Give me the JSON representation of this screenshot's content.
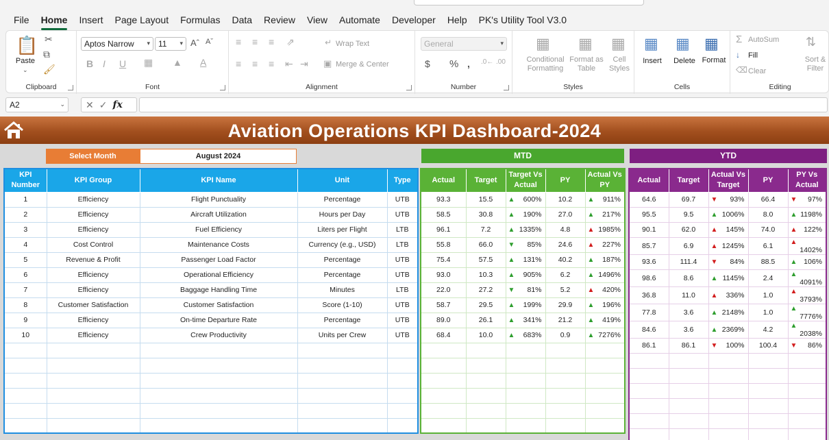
{
  "menu": [
    "File",
    "Home",
    "Insert",
    "Page Layout",
    "Formulas",
    "Data",
    "Review",
    "View",
    "Automate",
    "Developer",
    "Help",
    "PK's Utility Tool V3.0"
  ],
  "ribbon": {
    "clipboard": {
      "label": "Clipboard",
      "paste": "Paste"
    },
    "font": {
      "label": "Font",
      "font_name": "Aptos Narrow",
      "font_size": "11"
    },
    "alignment": {
      "label": "Alignment",
      "wrap": "Wrap Text",
      "merge": "Merge & Center"
    },
    "number": {
      "label": "Number",
      "format": "General"
    },
    "styles": {
      "label": "Styles",
      "cond1": "Conditional",
      "cond2": "Formatting",
      "fat1": "Format as",
      "fat2": "Table",
      "cs1": "Cell",
      "cs2": "Styles"
    },
    "cells": {
      "label": "Cells",
      "insert": "Insert",
      "delete": "Delete",
      "format": "Format"
    },
    "editing": {
      "label": "Editing",
      "autosum": "AutoSum",
      "fill": "Fill",
      "clear": "Clear",
      "sort1": "Sort &",
      "sort2": "Filter"
    }
  },
  "formula_bar": {
    "name_box": "A2",
    "fx": "fx"
  },
  "dashboard": {
    "title": "Aviation Operations KPI Dashboard-2024",
    "select_month_label": "Select Month",
    "month": "August 2024",
    "mtd": "MTD",
    "ytd": "YTD",
    "main_headers": [
      "KPI Number",
      "KPI Group",
      "KPI Name",
      "Unit",
      "Type"
    ],
    "mtd_headers": [
      "Actual",
      "Target",
      "Target Vs Actual",
      "PY",
      "Actual Vs PY"
    ],
    "ytd_headers": [
      "Actual",
      "Target",
      "Actual Vs Target",
      "PY",
      "PY Vs Actual"
    ],
    "rows": [
      {
        "n": "1",
        "group": "Efficiency",
        "name": "Flight Punctuality",
        "unit": "Percentage",
        "type": "UTB",
        "mtd": {
          "actual": "93.3",
          "target": "15.5",
          "tva_dir": "up",
          "tva": "600%",
          "py": "10.2",
          "avp_dir": "up",
          "avp": "911%"
        },
        "ytd": {
          "actual": "64.6",
          "target": "69.7",
          "avt_dir": "down",
          "avt": "93%",
          "py": "66.4",
          "pva_dir": "down",
          "pva": "97%"
        }
      },
      {
        "n": "2",
        "group": "Efficiency",
        "name": "Aircraft Utilization",
        "unit": "Hours per Day",
        "type": "UTB",
        "mtd": {
          "actual": "58.5",
          "target": "30.8",
          "tva_dir": "up",
          "tva": "190%",
          "py": "27.0",
          "avp_dir": "up",
          "avp": "217%"
        },
        "ytd": {
          "actual": "95.5",
          "target": "9.5",
          "avt_dir": "up",
          "avt": "1006%",
          "py": "8.0",
          "pva_dir": "up",
          "pva": "1198%"
        }
      },
      {
        "n": "3",
        "group": "Efficiency",
        "name": "Fuel Efficiency",
        "unit": "Liters per Flight",
        "type": "LTB",
        "mtd": {
          "actual": "96.1",
          "target": "7.2",
          "tva_dir": "up",
          "tva": "1335%",
          "py": "4.8",
          "avp_dir": "upred",
          "avp": "1985%"
        },
        "ytd": {
          "actual": "90.1",
          "target": "62.0",
          "avt_dir": "upred",
          "avt": "145%",
          "py": "74.0",
          "pva_dir": "upred",
          "pva": "122%"
        }
      },
      {
        "n": "4",
        "group": "Cost Control",
        "name": "Maintenance Costs",
        "unit": "Currency (e.g., USD)",
        "type": "LTB",
        "mtd": {
          "actual": "55.8",
          "target": "66.0",
          "tva_dir": "downgreen",
          "tva": "85%",
          "py": "24.6",
          "avp_dir": "upred",
          "avp": "227%"
        },
        "ytd": {
          "actual": "85.7",
          "target": "6.9",
          "avt_dir": "upred",
          "avt": "1245%",
          "py": "6.1",
          "pva_dir": "upred",
          "pva": "1402%"
        }
      },
      {
        "n": "5",
        "group": "Revenue & Profit",
        "name": "Passenger Load Factor",
        "unit": "Percentage",
        "type": "UTB",
        "mtd": {
          "actual": "75.4",
          "target": "57.5",
          "tva_dir": "up",
          "tva": "131%",
          "py": "40.2",
          "avp_dir": "up",
          "avp": "187%"
        },
        "ytd": {
          "actual": "93.6",
          "target": "111.4",
          "avt_dir": "down",
          "avt": "84%",
          "py": "88.5",
          "pva_dir": "up",
          "pva": "106%"
        }
      },
      {
        "n": "6",
        "group": "Efficiency",
        "name": "Operational Efficiency",
        "unit": "Percentage",
        "type": "UTB",
        "mtd": {
          "actual": "93.0",
          "target": "10.3",
          "tva_dir": "up",
          "tva": "905%",
          "py": "6.2",
          "avp_dir": "up",
          "avp": "1496%"
        },
        "ytd": {
          "actual": "98.6",
          "target": "8.6",
          "avt_dir": "up",
          "avt": "1145%",
          "py": "2.4",
          "pva_dir": "up",
          "pva": "4091%"
        }
      },
      {
        "n": "7",
        "group": "Efficiency",
        "name": "Baggage Handling Time",
        "unit": "Minutes",
        "type": "LTB",
        "mtd": {
          "actual": "22.0",
          "target": "27.2",
          "tva_dir": "downgreen",
          "tva": "81%",
          "py": "5.2",
          "avp_dir": "upred",
          "avp": "420%"
        },
        "ytd": {
          "actual": "36.8",
          "target": "11.0",
          "avt_dir": "upred",
          "avt": "336%",
          "py": "1.0",
          "pva_dir": "upred",
          "pva": "3793%"
        }
      },
      {
        "n": "8",
        "group": "Customer Satisfaction",
        "name": "Customer Satisfaction",
        "unit": "Score (1-10)",
        "type": "UTB",
        "mtd": {
          "actual": "58.7",
          "target": "29.5",
          "tva_dir": "up",
          "tva": "199%",
          "py": "29.9",
          "avp_dir": "up",
          "avp": "196%"
        },
        "ytd": {
          "actual": "77.8",
          "target": "3.6",
          "avt_dir": "up",
          "avt": "2148%",
          "py": "1.0",
          "pva_dir": "up",
          "pva": "7776%"
        }
      },
      {
        "n": "9",
        "group": "Efficiency",
        "name": "On-time Departure Rate",
        "unit": "Percentage",
        "type": "UTB",
        "mtd": {
          "actual": "89.0",
          "target": "26.1",
          "tva_dir": "up",
          "tva": "341%",
          "py": "21.2",
          "avp_dir": "up",
          "avp": "419%"
        },
        "ytd": {
          "actual": "84.6",
          "target": "3.6",
          "avt_dir": "up",
          "avt": "2369%",
          "py": "4.2",
          "pva_dir": "up",
          "pva": "2038%"
        }
      },
      {
        "n": "10",
        "group": "Efficiency",
        "name": "Crew Productivity",
        "unit": "Units per Crew",
        "type": "UTB",
        "mtd": {
          "actual": "68.4",
          "target": "10.0",
          "tva_dir": "up",
          "tva": "683%",
          "py": "0.9",
          "avp_dir": "up",
          "avp": "7276%"
        },
        "ytd": {
          "actual": "86.1",
          "target": "86.1",
          "avt_dir": "down",
          "avt": "100%",
          "py": "100.4",
          "pva_dir": "down",
          "pva": "86%"
        }
      }
    ],
    "colors": {
      "banner": "#a24f1e",
      "mtd": "#49a72e",
      "ytd": "#7e1f81",
      "main": "#1aa6e8",
      "up": "#2e9e2e",
      "down": "#d21d1d"
    }
  }
}
